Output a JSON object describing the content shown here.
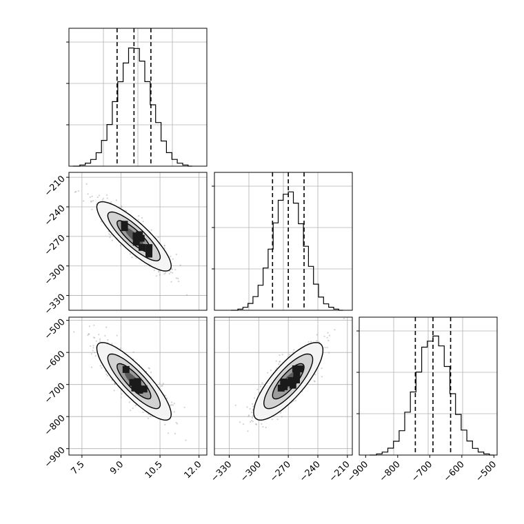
{
  "chart_data": {
    "type": "corner",
    "parameters": [
      {
        "label": "",
        "range": [
          7.0,
          12.3
        ],
        "ticks": [
          7.5,
          9.0,
          10.5,
          12.0
        ],
        "tick_labels": [
          "7.5",
          "9.0",
          "10.5",
          "12.0"
        ],
        "mean": 9.5,
        "sd": 0.65,
        "quantiles": [
          8.85,
          9.5,
          10.15
        ]
      },
      {
        "label": "",
        "range": [
          -345,
          -205
        ],
        "ticks": [
          -210,
          -240,
          -270,
          -300,
          -330
        ],
        "tick_labels": [
          "−210",
          "−240",
          "−270",
          "−300",
          "−330"
        ],
        "mean": -270,
        "sd": 16,
        "quantiles": [
          -286,
          -270,
          -254
        ]
      },
      {
        "label": "",
        "range": [
          -920,
          -490
        ],
        "ticks": [
          -500,
          -600,
          -700,
          -800,
          -900
        ],
        "tick_labels": [
          "−500",
          "−600",
          "−700",
          "−800",
          "−900"
        ],
        "mean": -690,
        "sd": 55,
        "quantiles": [
          -745,
          -690,
          -635
        ]
      }
    ],
    "x_tick_labels_bottom": {
      "col0": [
        "7.5",
        "9.0",
        "10.5",
        "12.0"
      ],
      "col1": [
        "−330",
        "−300",
        "−270",
        "−240",
        "−210"
      ],
      "col2": [
        "−900",
        "−800",
        "−700",
        "−600",
        "−500"
      ]
    },
    "correlations": {
      "p0_p1": -0.85,
      "p0_p2": -0.85,
      "p1_p2": 0.8
    },
    "grid": true,
    "histogram_bins": 20
  }
}
